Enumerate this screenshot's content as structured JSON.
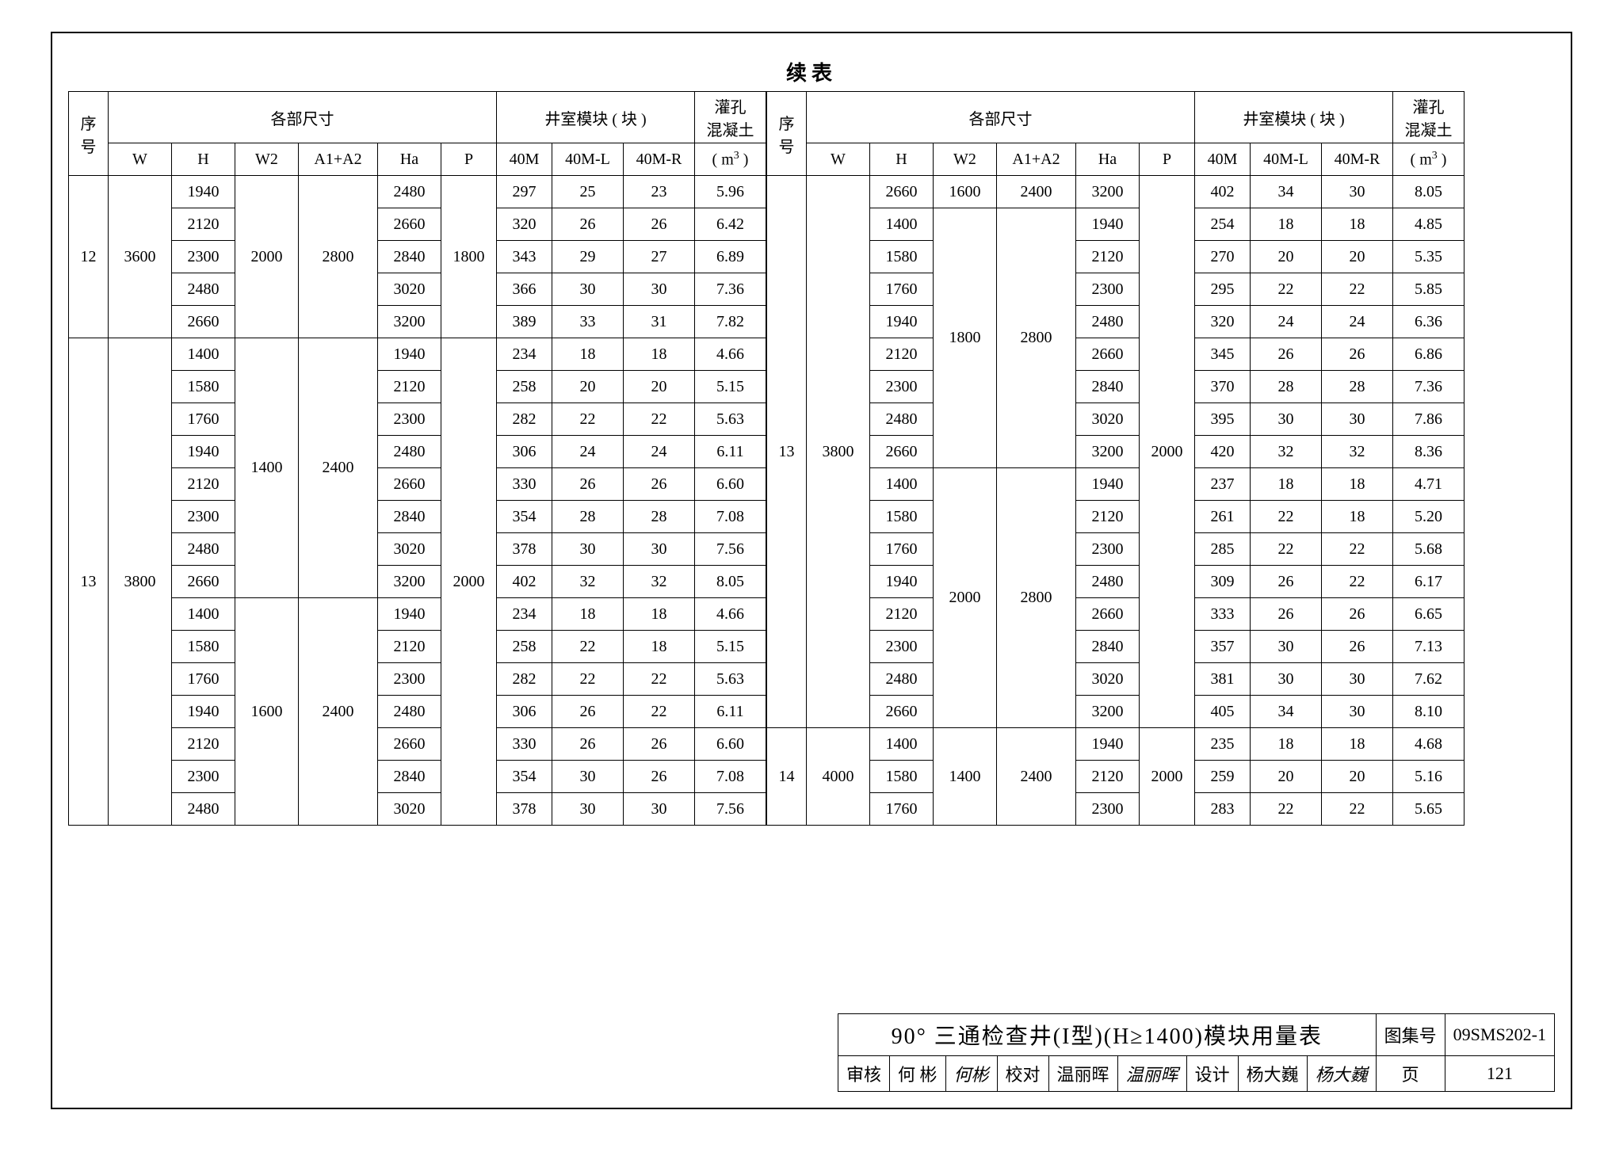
{
  "continued_label": "续表",
  "headers": {
    "seq": "序号",
    "dims": "各部尺寸",
    "well_blocks": "井室模块 ( 块 )",
    "grout": "灌孔",
    "concrete": "混凝土",
    "W": "W",
    "H": "H",
    "W2": "W2",
    "A1A2": "A1+A2",
    "Ha": "Ha",
    "P": "P",
    "m40": "40M",
    "m40L": "40M-L",
    "m40R": "40M-R",
    "m3": "( m³ )"
  },
  "left": {
    "groups": [
      {
        "seq": "12",
        "W": "3600",
        "subgroups": [
          {
            "W2": "2000",
            "A1A2": "2800",
            "P": "1800",
            "rows": [
              {
                "H": "1940",
                "Ha": "2480",
                "m40": "297",
                "m40L": "25",
                "m40R": "23",
                "m3": "5.96"
              },
              {
                "H": "2120",
                "Ha": "2660",
                "m40": "320",
                "m40L": "26",
                "m40R": "26",
                "m3": "6.42"
              },
              {
                "H": "2300",
                "Ha": "2840",
                "m40": "343",
                "m40L": "29",
                "m40R": "27",
                "m3": "6.89"
              },
              {
                "H": "2480",
                "Ha": "3020",
                "m40": "366",
                "m40L": "30",
                "m40R": "30",
                "m3": "7.36"
              },
              {
                "H": "2660",
                "Ha": "3200",
                "m40": "389",
                "m40L": "33",
                "m40R": "31",
                "m3": "7.82"
              }
            ]
          }
        ]
      },
      {
        "seq": "13",
        "W": "3800",
        "subgroups": [
          {
            "W2": "1400",
            "A1A2": "2400",
            "P": "2000",
            "P_span": 15,
            "rows": [
              {
                "H": "1400",
                "Ha": "1940",
                "m40": "234",
                "m40L": "18",
                "m40R": "18",
                "m3": "4.66"
              },
              {
                "H": "1580",
                "Ha": "2120",
                "m40": "258",
                "m40L": "20",
                "m40R": "20",
                "m3": "5.15"
              },
              {
                "H": "1760",
                "Ha": "2300",
                "m40": "282",
                "m40L": "22",
                "m40R": "22",
                "m3": "5.63"
              },
              {
                "H": "1940",
                "Ha": "2480",
                "m40": "306",
                "m40L": "24",
                "m40R": "24",
                "m3": "6.11"
              },
              {
                "H": "2120",
                "Ha": "2660",
                "m40": "330",
                "m40L": "26",
                "m40R": "26",
                "m3": "6.60"
              },
              {
                "H": "2300",
                "Ha": "2840",
                "m40": "354",
                "m40L": "28",
                "m40R": "28",
                "m3": "7.08"
              },
              {
                "H": "2480",
                "Ha": "3020",
                "m40": "378",
                "m40L": "30",
                "m40R": "30",
                "m3": "7.56"
              },
              {
                "H": "2660",
                "Ha": "3200",
                "m40": "402",
                "m40L": "32",
                "m40R": "32",
                "m3": "8.05"
              }
            ]
          },
          {
            "W2": "1600",
            "A1A2": "2400",
            "rows": [
              {
                "H": "1400",
                "Ha": "1940",
                "m40": "234",
                "m40L": "18",
                "m40R": "18",
                "m3": "4.66"
              },
              {
                "H": "1580",
                "Ha": "2120",
                "m40": "258",
                "m40L": "22",
                "m40R": "18",
                "m3": "5.15"
              },
              {
                "H": "1760",
                "Ha": "2300",
                "m40": "282",
                "m40L": "22",
                "m40R": "22",
                "m3": "5.63"
              },
              {
                "H": "1940",
                "Ha": "2480",
                "m40": "306",
                "m40L": "26",
                "m40R": "22",
                "m3": "6.11"
              },
              {
                "H": "2120",
                "Ha": "2660",
                "m40": "330",
                "m40L": "26",
                "m40R": "26",
                "m3": "6.60"
              },
              {
                "H": "2300",
                "Ha": "2840",
                "m40": "354",
                "m40L": "30",
                "m40R": "26",
                "m3": "7.08"
              },
              {
                "H": "2480",
                "Ha": "3020",
                "m40": "378",
                "m40L": "30",
                "m40R": "30",
                "m3": "7.56"
              }
            ]
          }
        ]
      }
    ]
  },
  "right": {
    "groups": [
      {
        "seq": "13",
        "W": "3800",
        "cont": true,
        "subgroups": [
          {
            "W2": "1600",
            "A1A2": "2400",
            "P": "2000",
            "P_span": 17,
            "single": true,
            "rows": [
              {
                "H": "2660",
                "Ha": "3200",
                "m40": "402",
                "m40L": "34",
                "m40R": "30",
                "m3": "8.05"
              }
            ]
          },
          {
            "W2": "1800",
            "A1A2": "2800",
            "rows": [
              {
                "H": "1400",
                "Ha": "1940",
                "m40": "254",
                "m40L": "18",
                "m40R": "18",
                "m3": "4.85"
              },
              {
                "H": "1580",
                "Ha": "2120",
                "m40": "270",
                "m40L": "20",
                "m40R": "20",
                "m3": "5.35"
              },
              {
                "H": "1760",
                "Ha": "2300",
                "m40": "295",
                "m40L": "22",
                "m40R": "22",
                "m3": "5.85"
              },
              {
                "H": "1940",
                "Ha": "2480",
                "m40": "320",
                "m40L": "24",
                "m40R": "24",
                "m3": "6.36"
              },
              {
                "H": "2120",
                "Ha": "2660",
                "m40": "345",
                "m40L": "26",
                "m40R": "26",
                "m3": "6.86"
              },
              {
                "H": "2300",
                "Ha": "2840",
                "m40": "370",
                "m40L": "28",
                "m40R": "28",
                "m3": "7.36"
              },
              {
                "H": "2480",
                "Ha": "3020",
                "m40": "395",
                "m40L": "30",
                "m40R": "30",
                "m3": "7.86"
              },
              {
                "H": "2660",
                "Ha": "3200",
                "m40": "420",
                "m40L": "32",
                "m40R": "32",
                "m3": "8.36"
              }
            ]
          },
          {
            "W2": "2000",
            "A1A2": "2800",
            "rows": [
              {
                "H": "1400",
                "Ha": "1940",
                "m40": "237",
                "m40L": "18",
                "m40R": "18",
                "m3": "4.71"
              },
              {
                "H": "1580",
                "Ha": "2120",
                "m40": "261",
                "m40L": "22",
                "m40R": "18",
                "m3": "5.20"
              },
              {
                "H": "1760",
                "Ha": "2300",
                "m40": "285",
                "m40L": "22",
                "m40R": "22",
                "m3": "5.68"
              },
              {
                "H": "1940",
                "Ha": "2480",
                "m40": "309",
                "m40L": "26",
                "m40R": "22",
                "m3": "6.17"
              },
              {
                "H": "2120",
                "Ha": "2660",
                "m40": "333",
                "m40L": "26",
                "m40R": "26",
                "m3": "6.65"
              },
              {
                "H": "2300",
                "Ha": "2840",
                "m40": "357",
                "m40L": "30",
                "m40R": "26",
                "m3": "7.13"
              },
              {
                "H": "2480",
                "Ha": "3020",
                "m40": "381",
                "m40L": "30",
                "m40R": "30",
                "m3": "7.62"
              },
              {
                "H": "2660",
                "Ha": "3200",
                "m40": "405",
                "m40L": "34",
                "m40R": "30",
                "m3": "8.10"
              }
            ]
          }
        ]
      },
      {
        "seq": "14",
        "W": "4000",
        "subgroups": [
          {
            "W2": "1400",
            "A1A2": "2400",
            "P": "2000",
            "rows": [
              {
                "H": "1400",
                "Ha": "1940",
                "m40": "235",
                "m40L": "18",
                "m40R": "18",
                "m3": "4.68"
              },
              {
                "H": "1580",
                "Ha": "2120",
                "m40": "259",
                "m40L": "20",
                "m40R": "20",
                "m3": "5.16"
              },
              {
                "H": "1760",
                "Ha": "2300",
                "m40": "283",
                "m40L": "22",
                "m40R": "22",
                "m3": "5.65"
              }
            ]
          }
        ]
      }
    ]
  },
  "titleblock": {
    "main": "90° 三通检查井(I型)(H≥1400)模块用量表",
    "atlas_label": "图集号",
    "atlas_no": "09SMS202-1",
    "review_l": "审核",
    "review_n": "何 彬",
    "review_s": "何彬",
    "check_l": "校对",
    "check_n": "温丽晖",
    "check_s": "温丽晖",
    "design_l": "设计",
    "design_n": "杨大巍",
    "design_s": "杨大巍",
    "page_l": "页",
    "page_n": "121"
  },
  "colwidths": {
    "seq": 50,
    "W": 80,
    "H": 80,
    "W2": 80,
    "A1A2": 100,
    "Ha": 80,
    "P": 70,
    "m40": 70,
    "m40L": 90,
    "m40R": 90,
    "m3": 90
  }
}
